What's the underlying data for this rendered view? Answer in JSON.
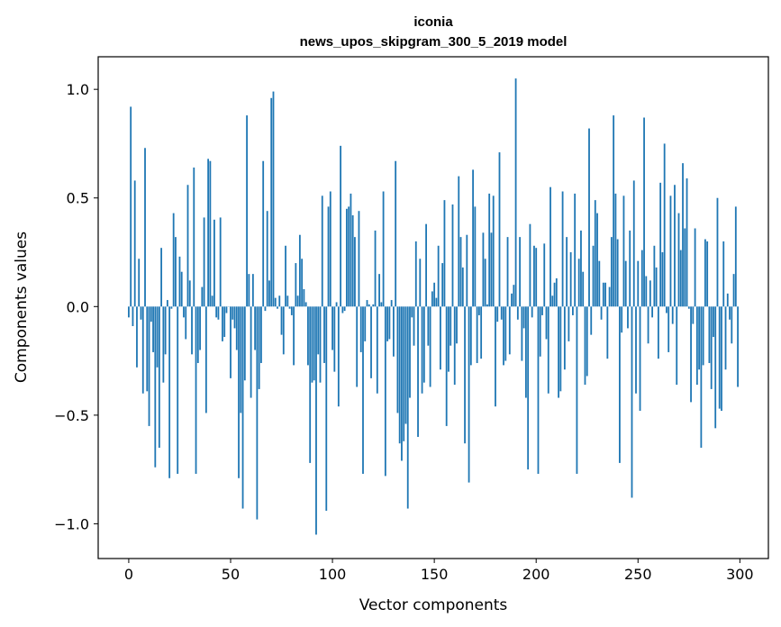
{
  "chart_data": {
    "type": "bar",
    "title": "iconia",
    "subtitle": "news_upos_skipgram_300_5_2019 model",
    "xlabel": "Vector components",
    "ylabel": "Components values",
    "xlim": [
      -15,
      314
    ],
    "ylim": [
      -1.16,
      1.15
    ],
    "xticks": [
      0,
      50,
      100,
      150,
      200,
      250,
      300
    ],
    "xtick_labels": [
      "0",
      "50",
      "100",
      "150",
      "200",
      "250",
      "300"
    ],
    "yticks": [
      -1.0,
      -0.5,
      0.0,
      0.5,
      1.0
    ],
    "ytick_labels": [
      "−1.0",
      "−0.5",
      "0.0",
      "0.5",
      "1.0"
    ],
    "bar_color": "#1f77b4",
    "grid": false,
    "legend": "none",
    "x_start": 0,
    "values": [
      -0.05,
      0.92,
      -0.09,
      0.58,
      -0.28,
      0.22,
      -0.06,
      -0.4,
      0.73,
      -0.39,
      -0.55,
      -0.07,
      -0.21,
      -0.74,
      -0.28,
      -0.65,
      0.27,
      -0.35,
      -0.22,
      0.03,
      -0.79,
      -0.01,
      0.43,
      0.32,
      -0.77,
      0.23,
      0.16,
      -0.05,
      -0.15,
      0.56,
      0.12,
      -0.22,
      0.64,
      -0.77,
      -0.26,
      -0.2,
      0.09,
      0.41,
      -0.49,
      0.68,
      0.67,
      0.05,
      0.4,
      -0.05,
      -0.06,
      0.41,
      -0.16,
      -0.14,
      -0.03,
      0.0,
      -0.33,
      -0.06,
      -0.1,
      -0.2,
      -0.79,
      -0.49,
      -0.93,
      -0.34,
      0.88,
      0.15,
      -0.42,
      0.15,
      -0.2,
      -0.98,
      -0.38,
      -0.26,
      0.67,
      -0.02,
      0.44,
      0.12,
      0.96,
      0.99,
      0.04,
      -0.01,
      0.05,
      -0.13,
      -0.22,
      0.28,
      0.05,
      -0.01,
      -0.04,
      -0.27,
      0.2,
      0.05,
      0.33,
      0.22,
      0.08,
      0.02,
      -0.27,
      -0.72,
      -0.35,
      -0.34,
      -1.05,
      -0.22,
      -0.35,
      0.51,
      -0.26,
      -0.94,
      0.46,
      0.53,
      -0.2,
      -0.3,
      0.02,
      -0.46,
      0.74,
      -0.03,
      -0.02,
      0.45,
      0.46,
      0.52,
      0.42,
      0.32,
      -0.37,
      0.44,
      -0.21,
      -0.77,
      -0.16,
      0.03,
      0.01,
      -0.33,
      0.01,
      0.35,
      -0.4,
      0.15,
      0.02,
      0.53,
      -0.78,
      -0.16,
      -0.15,
      0.03,
      -0.23,
      0.67,
      -0.49,
      -0.63,
      -0.71,
      -0.62,
      -0.54,
      -0.93,
      -0.42,
      -0.05,
      -0.18,
      0.3,
      -0.6,
      0.22,
      -0.4,
      -0.35,
      0.38,
      -0.18,
      -0.37,
      0.07,
      0.11,
      0.04,
      0.28,
      -0.29,
      0.2,
      0.49,
      -0.55,
      -0.3,
      -0.18,
      0.47,
      -0.36,
      -0.17,
      0.6,
      0.32,
      0.18,
      -0.63,
      0.33,
      -0.81,
      -0.27,
      0.63,
      0.46,
      -0.26,
      -0.04,
      -0.24,
      0.34,
      0.22,
      0.01,
      0.52,
      0.34,
      0.51,
      -0.46,
      -0.07,
      0.71,
      -0.06,
      -0.27,
      -0.25,
      0.32,
      -0.22,
      0.06,
      0.1,
      1.05,
      -0.06,
      0.32,
      -0.25,
      -0.1,
      -0.42,
      -0.75,
      0.38,
      -0.05,
      0.28,
      0.27,
      -0.77,
      -0.23,
      -0.04,
      0.29,
      -0.15,
      -0.4,
      0.55,
      0.05,
      0.11,
      0.13,
      -0.42,
      -0.39,
      0.53,
      -0.29,
      0.32,
      -0.16,
      0.25,
      -0.04,
      0.52,
      -0.77,
      0.22,
      0.35,
      0.16,
      -0.36,
      -0.32,
      0.82,
      -0.13,
      0.28,
      0.49,
      0.43,
      0.21,
      -0.06,
      0.11,
      0.11,
      -0.24,
      0.09,
      0.32,
      0.88,
      0.52,
      0.31,
      -0.72,
      -0.12,
      0.51,
      0.21,
      -0.1,
      0.35,
      -0.88,
      0.58,
      -0.4,
      0.21,
      -0.48,
      0.26,
      0.87,
      0.14,
      -0.17,
      0.12,
      -0.05,
      0.28,
      0.18,
      -0.24,
      0.57,
      0.25,
      0.75,
      -0.03,
      -0.21,
      0.51,
      -0.08,
      0.56,
      -0.36,
      0.43,
      0.26,
      0.66,
      0.36,
      0.59,
      -0.01,
      -0.44,
      -0.08,
      0.36,
      -0.36,
      -0.29,
      -0.65,
      -0.27,
      0.31,
      0.3,
      -0.26,
      -0.38,
      -0.14,
      -0.56,
      0.5,
      -0.47,
      -0.48,
      0.3,
      -0.29,
      0.06,
      -0.06,
      -0.17,
      0.15,
      0.46,
      -0.37
    ]
  }
}
